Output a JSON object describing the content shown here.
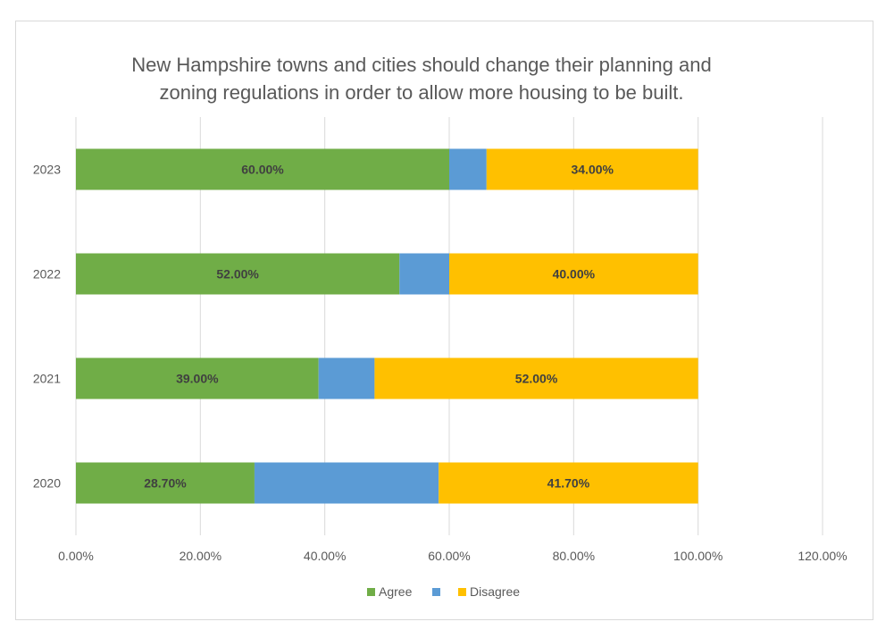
{
  "chart_data": {
    "type": "bar",
    "orientation": "horizontal",
    "stacked": true,
    "title": [
      "New Hampshire towns and cities should change their planning and",
      "zoning regulations in order to allow more housing to be built."
    ],
    "categories": [
      "2023",
      "2022",
      "2021",
      "2020"
    ],
    "series": [
      {
        "name": "Agree",
        "color": "#70ad47",
        "values": [
          60.0,
          52.0,
          39.0,
          28.7
        ],
        "labels": [
          "60.00%",
          "52.00%",
          "39.00%",
          "28.70%"
        ]
      },
      {
        "name": "",
        "color": "#5b9bd5",
        "values": [
          6.0,
          8.0,
          9.0,
          29.6
        ],
        "labels": []
      },
      {
        "name": "Disagree",
        "color": "#ffc000",
        "values": [
          34.0,
          40.0,
          52.0,
          41.7
        ],
        "labels": [
          "34.00%",
          "40.00%",
          "52.00%",
          "41.70%"
        ]
      }
    ],
    "xticks": [
      "0.00%",
      "20.00%",
      "40.00%",
      "60.00%",
      "80.00%",
      "100.00%",
      "120.00%"
    ],
    "xlim": [
      0,
      120
    ],
    "grid": true,
    "legend": "bottom",
    "xlabel": "",
    "ylabel": ""
  }
}
